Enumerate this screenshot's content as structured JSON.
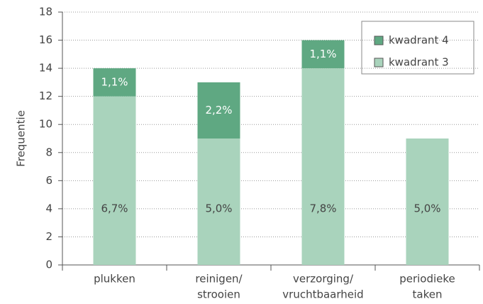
{
  "chart_data": {
    "type": "stacked_bar",
    "y_label": "Frequentie",
    "categories": [
      [
        "plukken"
      ],
      [
        "reinigen/",
        "strooien"
      ],
      [
        "verzorging/",
        "vruchtbaarheid"
      ],
      [
        "periodieke",
        "taken"
      ]
    ],
    "series": [
      {
        "name": "kwadrant 3",
        "color": "#a9d3bc",
        "values": [
          12,
          9,
          14,
          9
        ],
        "percent_labels": [
          "6,7%",
          "5,0%",
          "7,8%",
          "5,0%"
        ]
      },
      {
        "name": "kwadrant 4",
        "color": "#5fa882",
        "values": [
          2,
          4,
          2,
          0
        ],
        "percent_labels": [
          "1,1%",
          "2,2%",
          "1,1%",
          null
        ]
      }
    ],
    "ylim": [
      0,
      18
    ],
    "yticks": [
      0,
      2,
      4,
      6,
      8,
      10,
      12,
      14,
      16,
      18
    ],
    "grid": true,
    "legend": "top-right"
  }
}
